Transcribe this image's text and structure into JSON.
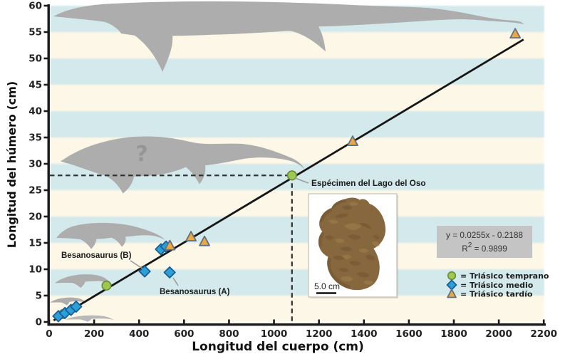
{
  "chart_data": {
    "type": "scatter",
    "xlabel": "Longitud del cuerpo (cm)",
    "ylabel": "Longitud del húmero (cm)",
    "xlim": [
      0,
      2200
    ],
    "ylim": [
      0,
      60
    ],
    "xtick_step": 200,
    "ytick_step": 5,
    "grid": "off",
    "background_stripes": {
      "colors": [
        "#fdf7e7",
        "#d4e9ec"
      ],
      "band_height_units": 5
    },
    "series": [
      {
        "name": "Triásico temprano",
        "marker": "circle",
        "fill": "#9cc94e",
        "edge": "#6f8c3a",
        "points": [
          [
            63,
            1.5
          ],
          [
            255,
            6.9
          ],
          [
            1080,
            27.8
          ]
        ]
      },
      {
        "name": "Triásico medio",
        "marker": "diamond",
        "fill": "#2b9fd8",
        "edge": "#1a5f94",
        "points": [
          [
            41,
            1.1
          ],
          [
            70,
            1.7
          ],
          [
            97,
            2.3
          ],
          [
            120,
            2.9
          ],
          [
            425,
            9.6
          ],
          [
            536,
            9.4
          ],
          [
            497,
            13.8
          ],
          [
            520,
            14.3
          ]
        ]
      },
      {
        "name": "Triásico tardío",
        "marker": "triangle",
        "fill": "#efa73f",
        "edge": "#5d7185",
        "points": [
          [
            537,
            14.5
          ],
          [
            631,
            16.2
          ],
          [
            691,
            15.3
          ],
          [
            1350,
            34.3
          ],
          [
            2073,
            54.7
          ]
        ]
      }
    ],
    "regression": {
      "slope": 0.0255,
      "intercept": -0.2188,
      "x_start": 20,
      "x_end": 2110,
      "equation_text": "y = 0.0255x - 0.2188",
      "r2_base": "R",
      "r2_sup": "2",
      "r2_rest": " = 0.9899"
    },
    "reference_point": {
      "x": 1080,
      "y": 27.8,
      "label": "Espécimen del Lago del Oso"
    },
    "annotations": [
      {
        "label": "Besanosaurus (B)"
      },
      {
        "label": "Besanosaurus (A)"
      }
    ],
    "legend": [
      {
        "prefix": "= ",
        "label": "Triásico temprano",
        "marker": "circle"
      },
      {
        "prefix": "= ",
        "label": "Triásico medio",
        "marker": "diamond"
      },
      {
        "prefix": "= ",
        "label": "Triásico tardío",
        "marker": "triangle"
      }
    ],
    "fossil_caption": "5.0 cm",
    "question_mark": "?",
    "colors": {
      "axis": "#1a1a1a",
      "line": "#161616",
      "dashed": "#333333",
      "silhouette": "#adadad",
      "equation_box": "#c4c4c4",
      "text": "#1c1c1c"
    }
  }
}
